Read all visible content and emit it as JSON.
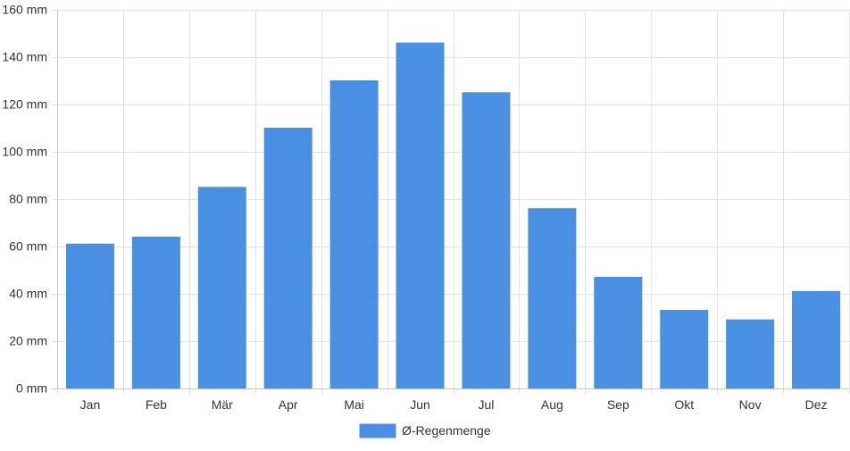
{
  "chart_data": {
    "type": "bar",
    "categories": [
      "Jan",
      "Feb",
      "Mär",
      "Apr",
      "Mai",
      "Jun",
      "Jul",
      "Aug",
      "Sep",
      "Okt",
      "Nov",
      "Dez"
    ],
    "series": [
      {
        "name": "Ø-Regenmenge",
        "values": [
          61,
          64,
          85,
          110,
          130,
          146,
          125,
          76,
          47,
          33,
          29,
          41
        ],
        "color": "#4a90e2"
      }
    ],
    "y_unit": "mm",
    "ylim": [
      0,
      160
    ],
    "y_ticks": [
      0,
      20,
      40,
      60,
      80,
      100,
      120,
      140,
      160
    ],
    "y_tick_labels": [
      "0 mm",
      "20 mm",
      "40 mm",
      "60 mm",
      "80 mm",
      "100 mm",
      "120 mm",
      "140 mm",
      "160 mm"
    ],
    "grid": true,
    "legend_position": "bottom"
  }
}
